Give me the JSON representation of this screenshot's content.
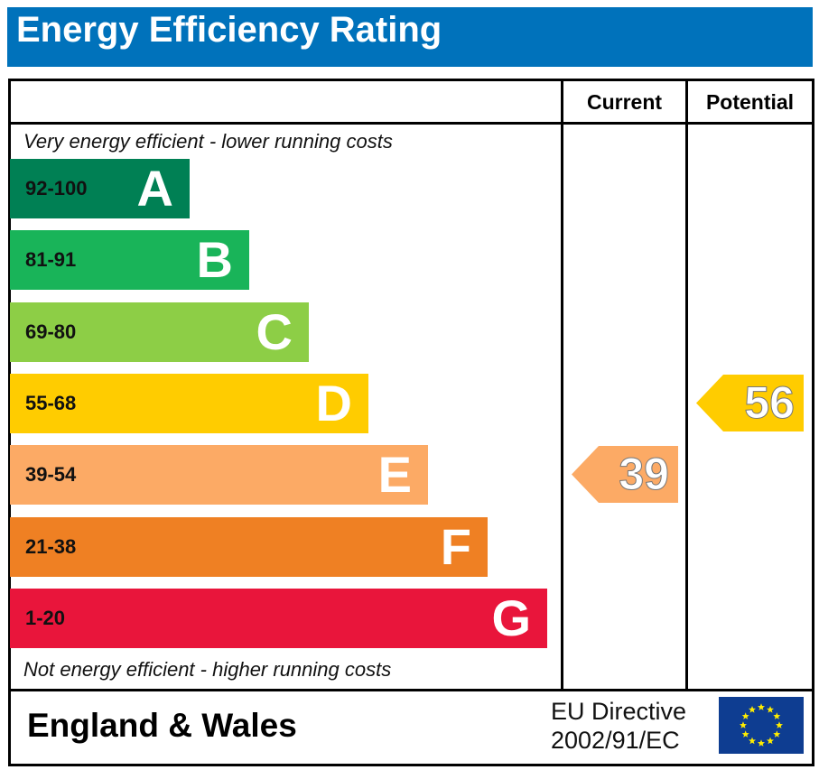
{
  "title": "Energy Efficiency Rating",
  "chart_data": {
    "type": "bar",
    "title": "Energy Efficiency Rating",
    "columns": [
      "Current",
      "Potential"
    ],
    "top_note": "Very energy efficient - lower running costs",
    "bottom_note": "Not energy efficient - higher running costs",
    "bands": [
      {
        "range": "92-100",
        "letter": "A",
        "color": "#008054"
      },
      {
        "range": "81-91",
        "letter": "B",
        "color": "#19b459"
      },
      {
        "range": "69-80",
        "letter": "C",
        "color": "#8dce46"
      },
      {
        "range": "55-68",
        "letter": "D",
        "color": "#ffcc00"
      },
      {
        "range": "39-54",
        "letter": "E",
        "color": "#fcaa65"
      },
      {
        "range": "21-38",
        "letter": "F",
        "color": "#ef8023"
      },
      {
        "range": "1-20",
        "letter": "G",
        "color": "#e9153b"
      }
    ],
    "current": {
      "value": 39,
      "band": "E",
      "color": "#fcaa65"
    },
    "potential": {
      "value": 56,
      "band": "D",
      "color": "#ffcc00"
    }
  },
  "footer": {
    "country": "England & Wales",
    "directive_line1": "EU Directive",
    "directive_line2": "2002/91/EC"
  }
}
